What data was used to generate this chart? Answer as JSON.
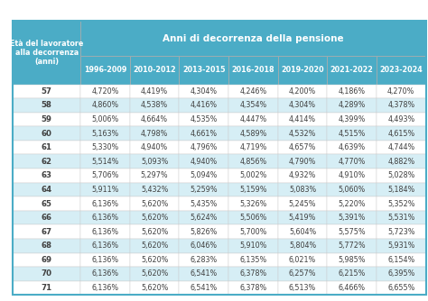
{
  "header_top": "Anni di decorrenza della pensione",
  "header_left_lines": [
    "Età del lavoratore",
    "alla decorrenza",
    "(anni)"
  ],
  "col_headers": [
    "1996-2009",
    "2010-2012",
    "2013-2015",
    "2016-2018",
    "2019-2020",
    "2021-2022",
    "2023-2024"
  ],
  "rows": [
    [
      "57",
      "4,720%",
      "4,419%",
      "4,304%",
      "4,246%",
      "4,200%",
      "4,186%",
      "4,270%"
    ],
    [
      "58",
      "4,860%",
      "4,538%",
      "4,416%",
      "4,354%",
      "4,304%",
      "4,289%",
      "4,378%"
    ],
    [
      "59",
      "5,006%",
      "4,664%",
      "4,535%",
      "4,447%",
      "4,414%",
      "4,399%",
      "4,493%"
    ],
    [
      "60",
      "5,163%",
      "4,798%",
      "4,661%",
      "4,589%",
      "4,532%",
      "4,515%",
      "4,615%"
    ],
    [
      "61",
      "5,330%",
      "4,940%",
      "4,796%",
      "4,719%",
      "4,657%",
      "4,639%",
      "4,744%"
    ],
    [
      "62",
      "5,514%",
      "5,093%",
      "4,940%",
      "4,856%",
      "4,790%",
      "4,770%",
      "4,882%"
    ],
    [
      "63",
      "5,706%",
      "5,297%",
      "5,094%",
      "5,002%",
      "4,932%",
      "4,910%",
      "5,028%"
    ],
    [
      "64",
      "5,911%",
      "5,432%",
      "5,259%",
      "5,159%",
      "5,083%",
      "5,060%",
      "5,184%"
    ],
    [
      "65",
      "6,136%",
      "5,620%",
      "5,435%",
      "5,326%",
      "5,245%",
      "5,220%",
      "5,352%"
    ],
    [
      "66",
      "6,136%",
      "5,620%",
      "5,624%",
      "5,506%",
      "5,419%",
      "5,391%",
      "5,531%"
    ],
    [
      "67",
      "6,136%",
      "5,620%",
      "5,826%",
      "5,700%",
      "5,604%",
      "5,575%",
      "5,723%"
    ],
    [
      "68",
      "6,136%",
      "5,620%",
      "6,046%",
      "5,910%",
      "5,804%",
      "5,772%",
      "5,931%"
    ],
    [
      "69",
      "6,136%",
      "5,620%",
      "6,283%",
      "6,135%",
      "6,021%",
      "5,985%",
      "6,154%"
    ],
    [
      "70",
      "6,136%",
      "5,620%",
      "6,541%",
      "6,378%",
      "6,257%",
      "6,215%",
      "6,395%"
    ],
    [
      "71",
      "6,136%",
      "5,620%",
      "6,541%",
      "6,378%",
      "6,513%",
      "6,466%",
      "6,655%"
    ]
  ],
  "teal_bg": "#4BACC6",
  "left_header_bg": "#FFFFFF",
  "odd_row_bg": "#FFFFFF",
  "even_row_bg": "#D6EEF5",
  "header_text_color": "#FFFFFF",
  "left_header_text_color": "#2E4057",
  "cell_text_color": "#404040",
  "border_color": "#AAAAAA",
  "outer_border_color": "#4BACC6",
  "fig_bg": "#FFFFFF",
  "margin_bg": "#F5F5F5"
}
